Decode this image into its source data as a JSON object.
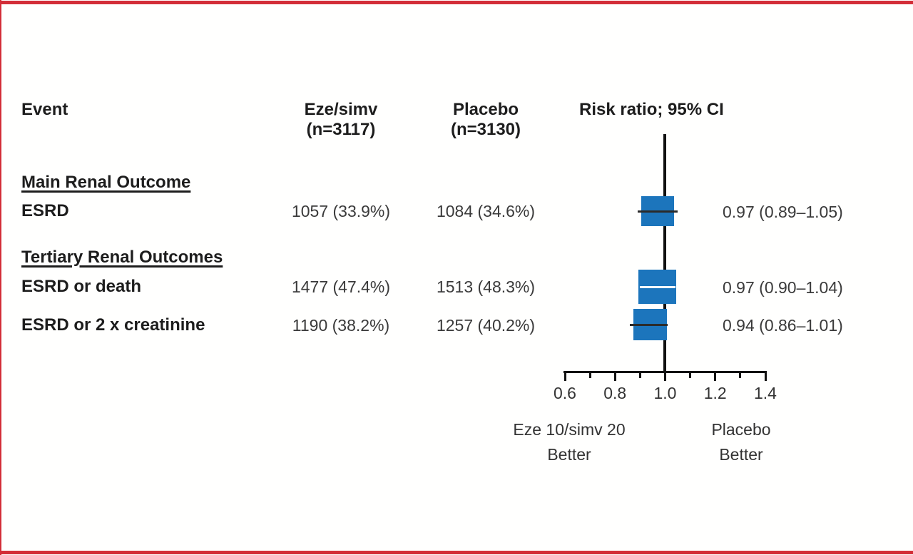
{
  "figure": {
    "bg_color": "#fffffe",
    "border_color": "#d32e38"
  },
  "table": {
    "header": {
      "event": "Event",
      "arm1_line1": "Eze/simv",
      "arm1_line2": "(n=3117)",
      "arm2_line1": "Placebo",
      "arm2_line2": "(n=3130)",
      "plot": "Risk ratio; 95% CI"
    },
    "sections": [
      {
        "title": "Main Renal Outcome"
      },
      {
        "title": "Tertiary Renal Outcomes"
      }
    ],
    "rows": [
      {
        "label": "ESRD",
        "arm1": "1057 (33.9%)",
        "arm2": "1084 (34.6%)",
        "ci_text": "0.97 (0.89–1.05)"
      },
      {
        "label": "ESRD or death",
        "arm1": "1477 (47.4%)",
        "arm2": "1513 (48.3%)",
        "ci_text": "0.97 (0.90–1.04)"
      },
      {
        "label": "ESRD or 2 x creatinine",
        "arm1": "1190 (38.2%)",
        "arm2": "1257 (40.2%)",
        "ci_text": "0.94 (0.86–1.01)"
      }
    ]
  },
  "chart_data": {
    "type": "forest",
    "title": "Risk ratio; 95% CI",
    "axis": {
      "min": 0.6,
      "max": 1.4,
      "minor_step": 0.1,
      "labels": [
        "0.6",
        "0.8",
        "1.0",
        "1.2",
        "1.4"
      ],
      "reference_line": 1.0
    },
    "series": [
      {
        "label": "ESRD",
        "rr": 0.97,
        "ci": [
          0.89,
          1.05
        ],
        "eze_n": 1057,
        "eze_pct": 33.9,
        "placebo_n": 1084,
        "placebo_pct": 34.6
      },
      {
        "label": "ESRD or death",
        "rr": 0.97,
        "ci": [
          0.9,
          1.04
        ],
        "eze_n": 1477,
        "eze_pct": 47.4,
        "placebo_n": 1513,
        "placebo_pct": 48.3
      },
      {
        "label": "ESRD or 2 x creatinine",
        "rr": 0.94,
        "ci": [
          0.86,
          1.01
        ],
        "eze_n": 1190,
        "eze_pct": 38.2,
        "placebo_n": 1257,
        "placebo_pct": 40.2
      }
    ],
    "marker_color": "#1c75bc",
    "ci_line_dark_color": "#2b2b2b",
    "ci_line_light_color": "#ffffff",
    "footer_left": [
      "Eze 10/simv 20",
      "Better"
    ],
    "footer_right": [
      "Placebo",
      "Better"
    ]
  }
}
